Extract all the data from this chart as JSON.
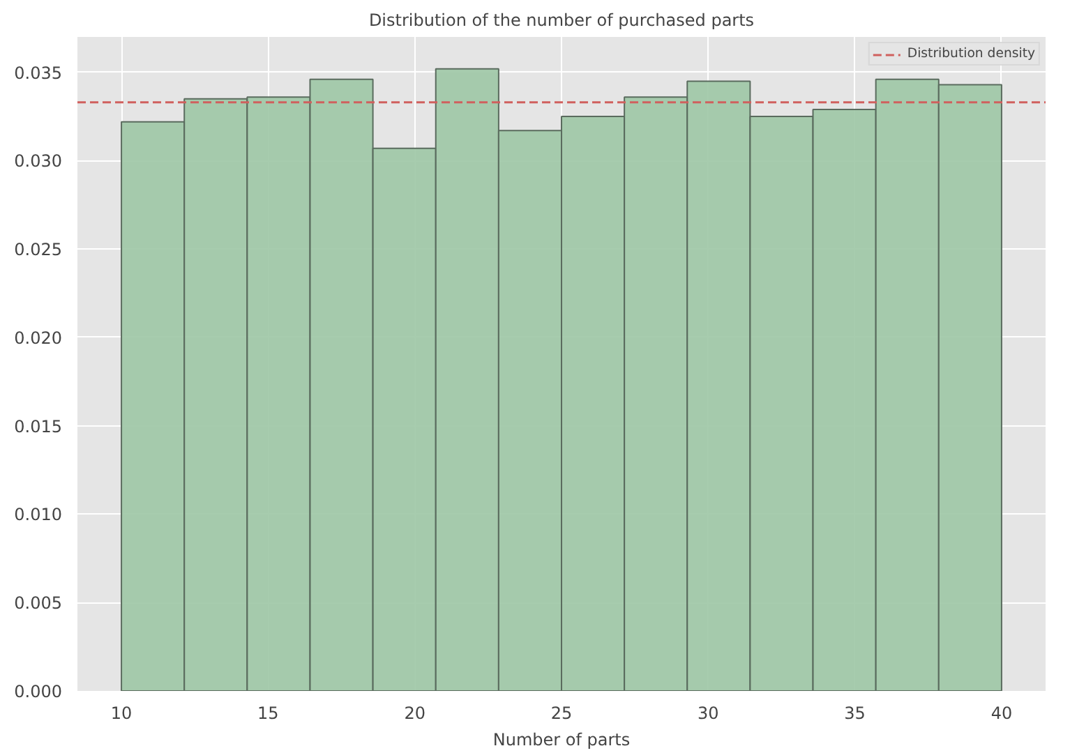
{
  "chart_data": {
    "type": "histogram",
    "title": "Distribution of the number of purchased parts",
    "xlabel": "Number of parts",
    "bins": [
      10,
      12.142857,
      14.285714,
      16.428571,
      18.571429,
      20.714286,
      22.857143,
      25,
      27.142857,
      29.285714,
      31.428571,
      33.571429,
      35.714286,
      37.857143,
      40
    ],
    "values": [
      0.0322,
      0.0335,
      0.0336,
      0.0346,
      0.0307,
      0.0352,
      0.0317,
      0.0325,
      0.0336,
      0.0345,
      0.0325,
      0.0329,
      0.0346,
      0.0343
    ],
    "color": "#9dc6a5",
    "xlim": [
      8.5,
      41.5
    ],
    "ylim": [
      0,
      0.037
    ],
    "xticks": [
      10,
      15,
      20,
      25,
      30,
      35,
      40
    ],
    "yticks": [
      {
        "value": 0,
        "label": "0.000"
      },
      {
        "value": 0.005,
        "label": "0.005"
      },
      {
        "value": 0.01,
        "label": "0.010"
      },
      {
        "value": 0.015,
        "label": "0.015"
      },
      {
        "value": 0.02,
        "label": "0.020"
      },
      {
        "value": 0.025,
        "label": "0.025"
      },
      {
        "value": 0.03,
        "label": "0.030"
      },
      {
        "value": 0.035,
        "label": "0.035"
      }
    ],
    "ref_lines": [
      {
        "axis": "y",
        "value": 0.0333,
        "label": "Distribution density",
        "color": "#d0605e",
        "line_style": "dashed"
      }
    ],
    "grid": true,
    "legend": "top right"
  }
}
